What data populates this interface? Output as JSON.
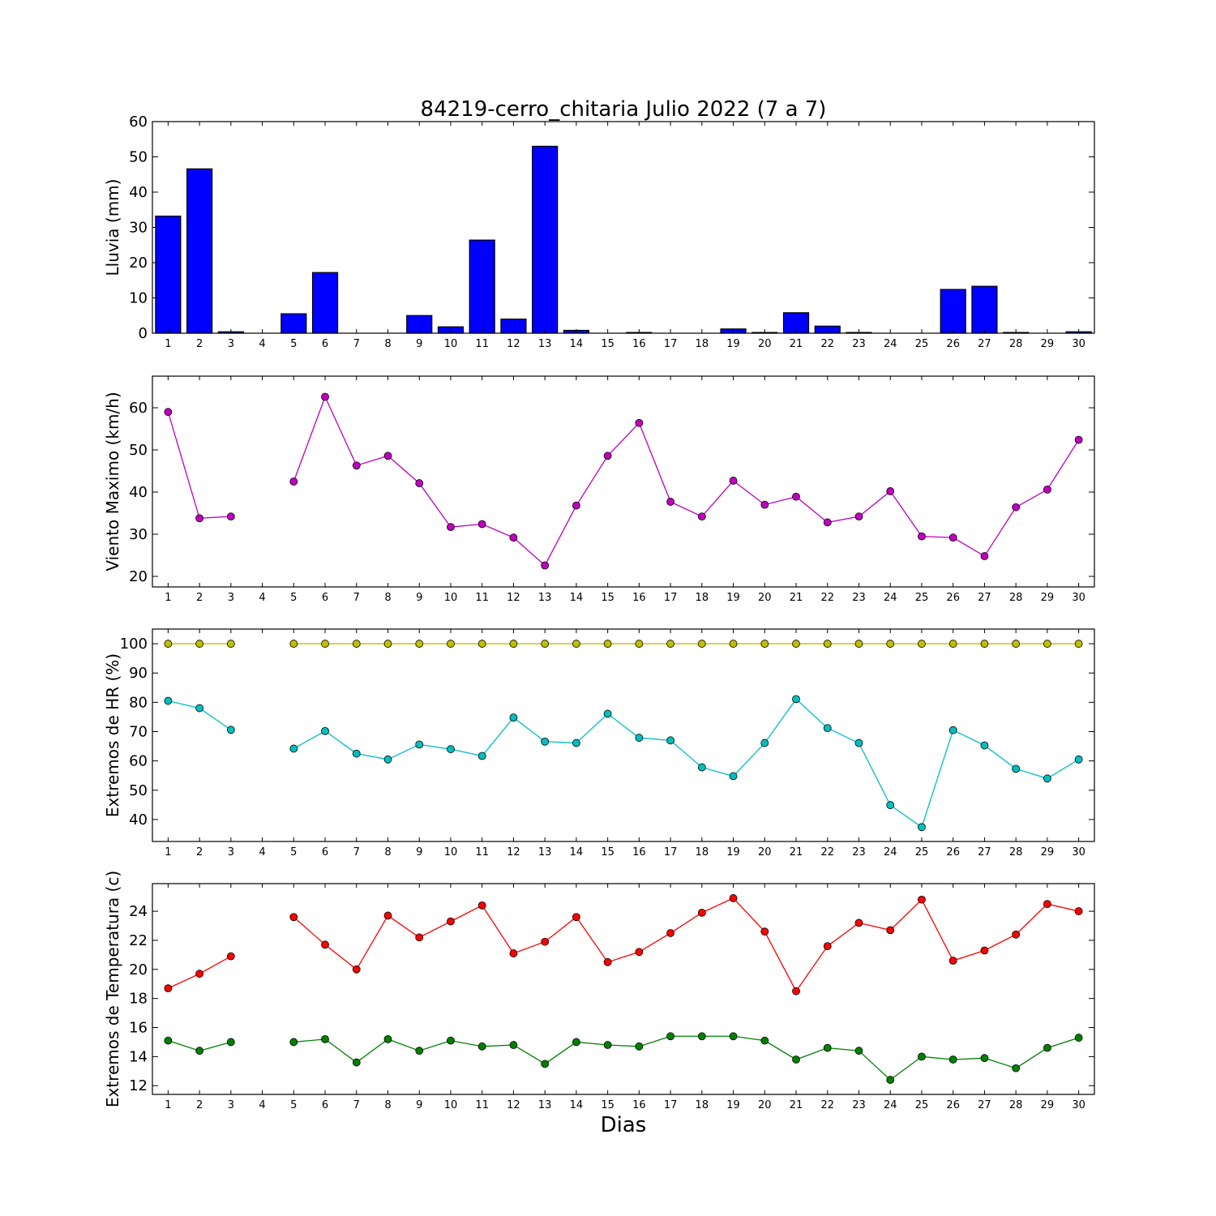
{
  "chart_data": [
    {
      "type": "bar",
      "title": "84219-cerro_chitaria Julio 2022  (7 a 7)",
      "ylabel": "Lluvia (mm)",
      "ylim": [
        0,
        60
      ],
      "yticks": [
        0,
        10,
        20,
        30,
        40,
        50,
        60
      ],
      "categories": [
        "1",
        "2",
        "3",
        "4",
        "5",
        "6",
        "7",
        "8",
        "9",
        "10",
        "11",
        "12",
        "13",
        "14",
        "15",
        "16",
        "17",
        "18",
        "19",
        "20",
        "21",
        "22",
        "23",
        "24",
        "25",
        "26",
        "27",
        "28",
        "29",
        "30"
      ],
      "values": [
        33.2,
        46.6,
        0.4,
        0,
        5.5,
        17.2,
        0,
        0,
        5.0,
        1.8,
        26.4,
        4.0,
        53.0,
        0.8,
        0,
        0.2,
        0,
        0,
        1.2,
        0.2,
        5.8,
        2.0,
        0.2,
        0,
        0,
        12.4,
        13.3,
        0.2,
        0,
        0.4
      ],
      "colors": {
        "bar": "#0000ff"
      },
      "grid": false
    },
    {
      "type": "line",
      "ylabel": "Viento Maximo (km/h)",
      "ylim": [
        17.5,
        67.5
      ],
      "yticks": [
        20,
        30,
        40,
        50,
        60
      ],
      "x": [
        "1",
        "2",
        "3",
        "4",
        "5",
        "6",
        "7",
        "8",
        "9",
        "10",
        "11",
        "12",
        "13",
        "14",
        "15",
        "16",
        "17",
        "18",
        "19",
        "20",
        "21",
        "22",
        "23",
        "24",
        "25",
        "26",
        "27",
        "28",
        "29",
        "30"
      ],
      "series": [
        {
          "color": "#bf00bf",
          "values": [
            59.0,
            33.8,
            34.2,
            null,
            42.5,
            62.6,
            46.3,
            48.6,
            42.1,
            31.7,
            32.4,
            29.2,
            22.6,
            36.8,
            48.6,
            56.4,
            37.7,
            34.2,
            42.7,
            37.0,
            38.9,
            32.8,
            34.2,
            40.2,
            29.5,
            29.2,
            24.8,
            36.4,
            40.6,
            52.4
          ]
        }
      ],
      "grid": false
    },
    {
      "type": "line",
      "ylabel": "Extremos de HR (%)",
      "ylim": [
        32.5,
        105
      ],
      "yticks": [
        40,
        50,
        60,
        70,
        80,
        90,
        100
      ],
      "x": [
        "1",
        "2",
        "3",
        "4",
        "5",
        "6",
        "7",
        "8",
        "9",
        "10",
        "11",
        "12",
        "13",
        "14",
        "15",
        "16",
        "17",
        "18",
        "19",
        "20",
        "21",
        "22",
        "23",
        "24",
        "25",
        "26",
        "27",
        "28",
        "29",
        "30"
      ],
      "series": [
        {
          "color": "#bfbf00",
          "values": [
            100,
            100,
            100,
            null,
            100,
            100,
            100,
            100,
            100,
            100,
            100,
            100,
            100,
            100,
            100,
            100,
            100,
            100,
            100,
            100,
            100,
            100,
            100,
            100,
            100,
            100,
            100,
            100,
            100,
            100
          ]
        },
        {
          "color": "#00bfbf",
          "values": [
            80.5,
            78.0,
            70.6,
            null,
            64.2,
            70.2,
            62.5,
            60.5,
            65.6,
            64.0,
            61.7,
            74.8,
            66.6,
            66.1,
            76.1,
            67.9,
            67.0,
            57.8,
            54.8,
            66.1,
            81.1,
            71.2,
            66.1,
            44.9,
            37.4,
            70.5,
            65.3,
            57.3,
            54.0,
            60.5
          ]
        }
      ],
      "grid": false
    },
    {
      "type": "line",
      "ylabel": "Extremos de Temperatura (c)",
      "xlabel": "Dias",
      "ylim": [
        11.4,
        25.9
      ],
      "yticks": [
        12,
        14,
        16,
        18,
        20,
        22,
        24
      ],
      "x": [
        "1",
        "2",
        "3",
        "4",
        "5",
        "6",
        "7",
        "8",
        "9",
        "10",
        "11",
        "12",
        "13",
        "14",
        "15",
        "16",
        "17",
        "18",
        "19",
        "20",
        "21",
        "22",
        "23",
        "24",
        "25",
        "26",
        "27",
        "28",
        "29",
        "30"
      ],
      "series": [
        {
          "color": "#ff0000",
          "values": [
            18.7,
            19.7,
            20.9,
            null,
            23.6,
            21.7,
            20.0,
            23.7,
            22.2,
            23.3,
            24.4,
            21.1,
            21.9,
            23.6,
            20.5,
            21.2,
            22.5,
            23.9,
            24.9,
            22.6,
            18.5,
            21.6,
            23.2,
            22.7,
            24.8,
            20.6,
            21.3,
            22.4,
            24.5,
            24.0
          ]
        },
        {
          "color": "#008000",
          "values": [
            15.1,
            14.4,
            15.0,
            null,
            15.0,
            15.2,
            13.6,
            15.2,
            14.4,
            15.1,
            14.7,
            14.8,
            13.5,
            15.0,
            14.8,
            14.7,
            15.4,
            15.4,
            15.4,
            15.1,
            13.8,
            14.6,
            14.4,
            12.4,
            14.0,
            13.8,
            13.9,
            13.2,
            14.6,
            15.3
          ]
        }
      ],
      "grid": false
    }
  ]
}
